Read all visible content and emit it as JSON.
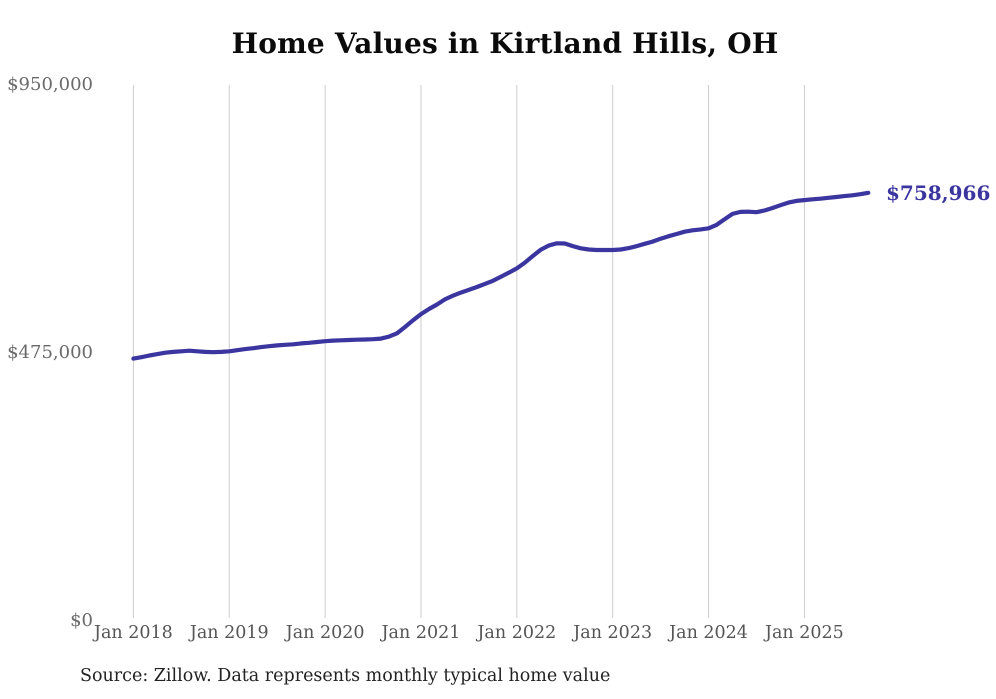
{
  "source": {
    "text": "Source: Zillow. Data represents monthly typical home value"
  },
  "chart_data": {
    "type": "line",
    "title": "Home Values in Kirtland Hills, OH",
    "xlabel": "",
    "ylabel": "",
    "ylim": [
      0,
      950000
    ],
    "grid": "vertical-only",
    "legend": "none",
    "line_color": "#3b35a0",
    "grid_color": "#cccccc",
    "end_label": "$758,966",
    "end_value": 758966,
    "x_tick_labels": [
      "Jan 2018",
      "Jan 2019",
      "Jan 2020",
      "Jan 2021",
      "Jan 2022",
      "Jan 2023",
      "Jan 2024",
      "Jan 2025"
    ],
    "y_tick_labels": [
      "$0",
      "$475,000",
      "$950,000"
    ],
    "y_tick_values": [
      0,
      475000,
      950000
    ],
    "series_name": "Typical home value (monthly)",
    "x_months": [
      "2018-01",
      "2018-02",
      "2018-03",
      "2018-04",
      "2018-05",
      "2018-06",
      "2018-07",
      "2018-08",
      "2018-09",
      "2018-10",
      "2018-11",
      "2018-12",
      "2019-01",
      "2019-02",
      "2019-03",
      "2019-04",
      "2019-05",
      "2019-06",
      "2019-07",
      "2019-08",
      "2019-09",
      "2019-10",
      "2019-11",
      "2019-12",
      "2020-01",
      "2020-02",
      "2020-03",
      "2020-04",
      "2020-05",
      "2020-06",
      "2020-07",
      "2020-08",
      "2020-09",
      "2020-10",
      "2020-11",
      "2020-12",
      "2021-01",
      "2021-02",
      "2021-03",
      "2021-04",
      "2021-05",
      "2021-06",
      "2021-07",
      "2021-08",
      "2021-09",
      "2021-10",
      "2021-11",
      "2021-12",
      "2022-01",
      "2022-02",
      "2022-03",
      "2022-04",
      "2022-05",
      "2022-06",
      "2022-07",
      "2022-08",
      "2022-09",
      "2022-10",
      "2022-11",
      "2022-12",
      "2023-01",
      "2023-02",
      "2023-03",
      "2023-04",
      "2023-05",
      "2023-06",
      "2023-07",
      "2023-08",
      "2023-09",
      "2023-10",
      "2023-11",
      "2023-12",
      "2024-01",
      "2024-02",
      "2024-03",
      "2024-04",
      "2024-05",
      "2024-06",
      "2024-07",
      "2024-08",
      "2024-09",
      "2024-10",
      "2024-11",
      "2024-12",
      "2025-01",
      "2025-02",
      "2025-03",
      "2025-04",
      "2025-05",
      "2025-06",
      "2025-07",
      "2025-08",
      "2025-09"
    ],
    "values": [
      465000,
      467500,
      470500,
      473000,
      475500,
      477000,
      478000,
      479000,
      478000,
      477000,
      476500,
      477000,
      478000,
      480000,
      482000,
      483500,
      485500,
      487000,
      488500,
      489500,
      490500,
      492000,
      493000,
      494500,
      496000,
      497000,
      497500,
      498000,
      498500,
      499000,
      499500,
      500500,
      504000,
      510000,
      521000,
      533000,
      544000,
      553000,
      561000,
      570000,
      576500,
      582000,
      587000,
      592000,
      597500,
      603000,
      610000,
      617500,
      625000,
      635000,
      647000,
      658000,
      665500,
      669500,
      669000,
      664500,
      660500,
      658500,
      657500,
      657500,
      657500,
      658500,
      661000,
      664500,
      668500,
      672500,
      677500,
      682000,
      686000,
      690000,
      692500,
      694000,
      696000,
      702000,
      712000,
      721500,
      725000,
      725500,
      724500,
      727500,
      732000,
      737000,
      741500,
      744500,
      746000,
      747500,
      748500,
      750000,
      751500,
      753000,
      754500,
      756500,
      758966
    ]
  }
}
